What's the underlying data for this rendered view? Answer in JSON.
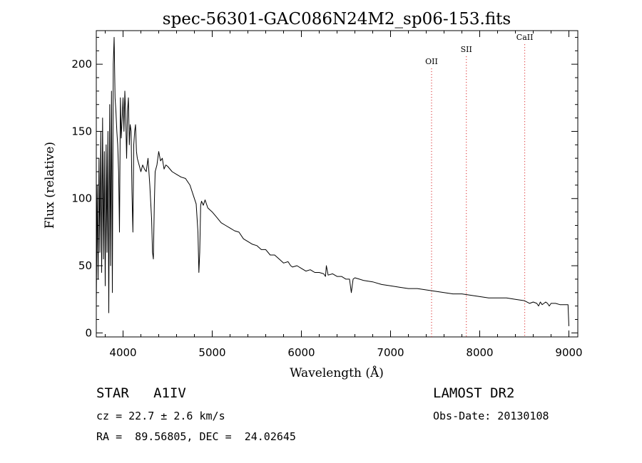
{
  "chart_data": {
    "type": "line",
    "title": "spec-56301-GAC086N24M2_sp06-153.fits",
    "xlabel": "Wavelength (Å)",
    "ylabel": "Flux (relative)",
    "xlim": [
      3700,
      9100
    ],
    "ylim": [
      -3,
      225
    ],
    "x_ticks": [
      4000,
      5000,
      6000,
      7000,
      8000,
      9000
    ],
    "y_ticks": [
      0,
      50,
      100,
      150,
      200
    ],
    "grid": false,
    "series": [
      {
        "x": [
          3700,
          3710,
          3720,
          3730,
          3740,
          3750,
          3760,
          3770,
          3780,
          3790,
          3800,
          3810,
          3820,
          3830,
          3840,
          3850,
          3860,
          3870,
          3880,
          3890,
          3900,
          3910,
          3920,
          3930,
          3940,
          3950,
          3960,
          3970,
          3980,
          3990,
          4000,
          4010,
          4020,
          4030,
          4040,
          4050,
          4060,
          4070,
          4080,
          4090,
          4100,
          4110,
          4120,
          4130,
          4140,
          4150,
          4160,
          4180,
          4200,
          4220,
          4240,
          4260,
          4280,
          4300,
          4320,
          4330,
          4340,
          4350,
          4360,
          4380,
          4400,
          4420,
          4440,
          4460,
          4480,
          4500,
          4550,
          4600,
          4650,
          4700,
          4750,
          4800,
          4820,
          4840,
          4850,
          4860,
          4870,
          4880,
          4900,
          4920,
          4950,
          5000,
          5050,
          5100,
          5150,
          5200,
          5250,
          5300,
          5350,
          5400,
          5450,
          5500,
          5550,
          5600,
          5650,
          5700,
          5750,
          5800,
          5850,
          5880,
          5900,
          5950,
          6000,
          6050,
          6100,
          6150,
          6200,
          6250,
          6270,
          6280,
          6300,
          6350,
          6400,
          6450,
          6500,
          6540,
          6560,
          6580,
          6600,
          6650,
          6700,
          6800,
          6900,
          7000,
          7100,
          7200,
          7300,
          7400,
          7500,
          7600,
          7700,
          7800,
          7900,
          8000,
          8100,
          8200,
          8300,
          8400,
          8500,
          8560,
          8600,
          8640,
          8660,
          8680,
          8700,
          8720,
          8740,
          8760,
          8780,
          8800,
          8850,
          8900,
          8950,
          8990,
          9000
        ],
        "y": [
          20,
          110,
          40,
          130,
          60,
          150,
          45,
          160,
          55,
          135,
          35,
          140,
          60,
          150,
          15,
          170,
          50,
          180,
          30,
          200,
          220,
          175,
          165,
          150,
          140,
          120,
          75,
          175,
          145,
          160,
          175,
          150,
          180,
          160,
          130,
          165,
          175,
          140,
          155,
          150,
          105,
          75,
          140,
          150,
          155,
          135,
          130,
          125,
          120,
          125,
          122,
          120,
          130,
          110,
          85,
          60,
          55,
          95,
          120,
          125,
          135,
          128,
          130,
          122,
          125,
          124,
          120,
          118,
          116,
          115,
          110,
          100,
          96,
          75,
          45,
          60,
          95,
          98,
          95,
          99,
          93,
          90,
          86,
          82,
          80,
          78,
          76,
          75,
          70,
          68,
          66,
          65,
          62,
          62,
          58,
          58,
          55,
          52,
          53,
          50,
          49,
          50,
          48,
          46,
          47,
          45,
          45,
          44,
          42,
          50,
          43,
          44,
          42,
          42,
          40,
          40,
          30,
          40,
          41,
          40,
          39,
          38,
          36,
          35,
          34,
          33,
          33,
          32,
          31,
          30,
          29,
          29,
          28,
          27,
          26,
          26,
          26,
          25,
          24,
          22,
          23,
          22,
          20,
          23,
          21,
          22,
          23,
          22,
          20,
          22,
          22,
          21,
          21,
          21,
          5
        ]
      }
    ],
    "annotations": [
      {
        "label": "OII",
        "x": 7460,
        "y": 200
      },
      {
        "label": "SII",
        "x": 7850,
        "y": 209
      },
      {
        "label": "CaII",
        "x": 8505,
        "y": 218
      }
    ],
    "annotation_color": "#d40000"
  },
  "info": {
    "object_line": "STAR   A1IV",
    "cz_line": "cz = 22.7 ± 2.6 km/s",
    "coord_line": "RA =  89.56805, DEC =  24.02645",
    "survey": "LAMOST DR2",
    "obs_date": "Obs-Date: 20130108"
  }
}
